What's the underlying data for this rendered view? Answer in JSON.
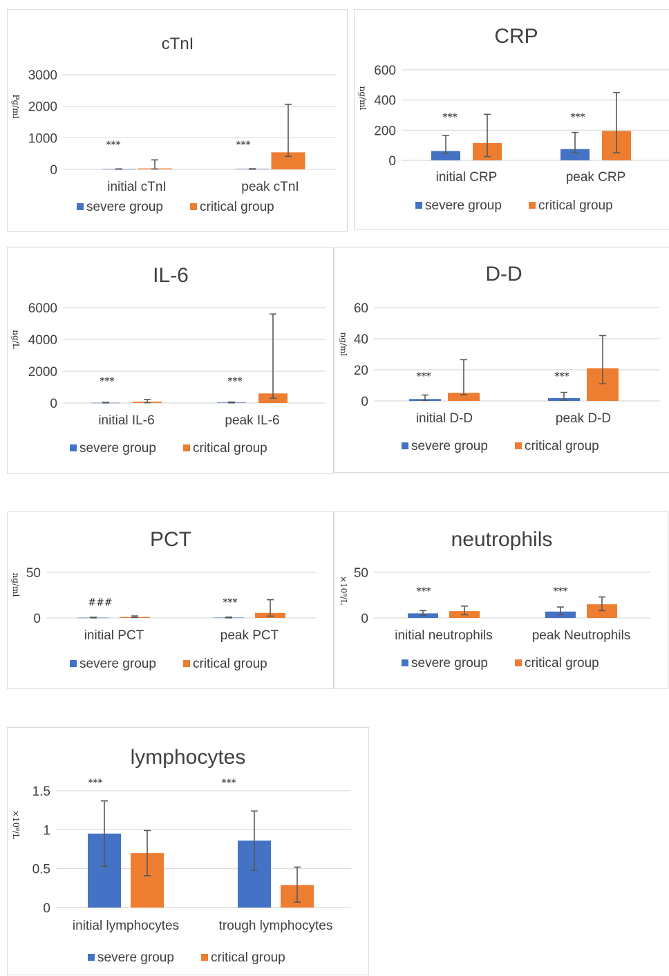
{
  "colors": {
    "severe": "#4472c4",
    "critical": "#ed7d31",
    "grid": "#d9d9d9",
    "error": "#595959"
  },
  "chart_data": [
    {
      "type": "bar",
      "title": "cTnI",
      "ylabel": "Pg/ml",
      "categories": [
        "initial cTnI",
        "peak cTnI"
      ],
      "significance": [
        "***",
        "***"
      ],
      "yticks": [
        "0",
        "1000",
        "2000",
        "3000"
      ],
      "ylim": [
        0,
        3000
      ],
      "series": [
        {
          "name": "severe group",
          "values": [
            10,
            15
          ],
          "err_low": [
            5,
            5
          ],
          "err_high": [
            15,
            20
          ]
        },
        {
          "name": "critical group",
          "values": [
            30,
            540
          ],
          "err_low": [
            10,
            410
          ],
          "err_high": [
            300,
            2060
          ]
        }
      ]
    },
    {
      "type": "bar",
      "title": "CRP",
      "ylabel": "ng/ml",
      "categories": [
        "initial CRP",
        "peak CRP"
      ],
      "significance": [
        "***",
        "***"
      ],
      "yticks": [
        "0",
        "200",
        "400",
        "600"
      ],
      "ylim": [
        0,
        600
      ],
      "series": [
        {
          "name": "severe group",
          "values": [
            62,
            75
          ],
          "err_low": [
            45,
            50
          ],
          "err_high": [
            165,
            185
          ]
        },
        {
          "name": "critical group",
          "values": [
            115,
            195
          ],
          "err_low": [
            25,
            50
          ],
          "err_high": [
            305,
            450
          ]
        }
      ]
    },
    {
      "type": "bar",
      "title": "IL-6",
      "ylabel": "ng/L",
      "categories": [
        "initial IL-6",
        "peak IL-6"
      ],
      "significance": [
        "***",
        "***"
      ],
      "yticks": [
        "0",
        "2000",
        "4000",
        "6000"
      ],
      "ylim": [
        0,
        6000
      ],
      "series": [
        {
          "name": "severe group",
          "values": [
            15,
            30
          ],
          "err_low": [
            5,
            10
          ],
          "err_high": [
            40,
            60
          ]
        },
        {
          "name": "critical group",
          "values": [
            80,
            600
          ],
          "err_low": [
            20,
            300
          ],
          "err_high": [
            220,
            5600
          ]
        }
      ]
    },
    {
      "type": "bar",
      "title": "D-D",
      "ylabel": "ng/ml",
      "categories": [
        "initial D-D",
        "peak D-D"
      ],
      "significance": [
        "***",
        "***"
      ],
      "yticks": [
        "0",
        "20",
        "40",
        "60"
      ],
      "ylim": [
        0,
        60
      ],
      "series": [
        {
          "name": "severe group",
          "values": [
            1.2,
            1.8
          ],
          "err_low": [
            0.3,
            0.5
          ],
          "err_high": [
            3.8,
            5.5
          ]
        },
        {
          "name": "critical group",
          "values": [
            5.2,
            21
          ],
          "err_low": [
            4,
            11
          ],
          "err_high": [
            26.5,
            42
          ]
        }
      ]
    },
    {
      "type": "bar",
      "title": "PCT",
      "ylabel": "ng/ml",
      "categories": [
        "initial PCT",
        "peak PCT"
      ],
      "significance": [
        "###",
        "***"
      ],
      "yticks": [
        "0",
        "50"
      ],
      "ylim": [
        0,
        50
      ],
      "series": [
        {
          "name": "severe group",
          "values": [
            0.3,
            0.4
          ],
          "err_low": [
            0.1,
            0.1
          ],
          "err_high": [
            0.8,
            1
          ]
        },
        {
          "name": "critical group",
          "values": [
            1,
            5.5
          ],
          "err_low": [
            0.5,
            2
          ],
          "err_high": [
            2.2,
            20
          ]
        }
      ]
    },
    {
      "type": "bar",
      "title": "neutrophils",
      "ylabel": "×10⁹/L",
      "categories": [
        "initial neutrophils",
        "peak Neutrophils"
      ],
      "significance": [
        "***",
        "***"
      ],
      "yticks": [
        "0",
        "50"
      ],
      "ylim": [
        0,
        50
      ],
      "series": [
        {
          "name": "severe group",
          "values": [
            5,
            7
          ],
          "err_low": [
            3,
            3.5
          ],
          "err_high": [
            8,
            12
          ]
        },
        {
          "name": "critical group",
          "values": [
            7.5,
            15
          ],
          "err_low": [
            3.5,
            8
          ],
          "err_high": [
            13,
            23
          ]
        }
      ]
    },
    {
      "type": "bar",
      "title": "lymphocytes",
      "ylabel": "×10⁹/L",
      "categories": [
        "initial lymphocytes",
        "trough lymphocytes"
      ],
      "significance": [
        "***",
        "***"
      ],
      "yticks": [
        "0",
        "0.5",
        "1",
        "1.5"
      ],
      "ylim": [
        0,
        1.5
      ],
      "series": [
        {
          "name": "severe group",
          "values": [
            0.95,
            0.86
          ],
          "err_low": [
            0.53,
            0.48
          ],
          "err_high": [
            1.37,
            1.24
          ]
        },
        {
          "name": "critical group",
          "values": [
            0.7,
            0.29
          ],
          "err_low": [
            0.41,
            0.07
          ],
          "err_high": [
            0.99,
            0.52
          ]
        }
      ]
    }
  ]
}
